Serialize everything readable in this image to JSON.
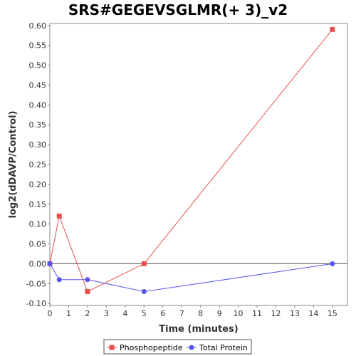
{
  "chart_data": {
    "type": "line",
    "title": "SRS#GEGEVSGLMR(+ 3)_v2",
    "xlabel": "Time (minutes)",
    "ylabel": "log2(dDAVP/Control)",
    "xlim": [
      0,
      15.8
    ],
    "ylim": [
      -0.105,
      0.605
    ],
    "x_ticks": [
      0,
      1,
      2,
      3,
      4,
      5,
      6,
      7,
      8,
      9,
      10,
      11,
      12,
      13,
      14,
      15
    ],
    "y_ticks": [
      -0.1,
      -0.05,
      0.0,
      0.05,
      0.1,
      0.15,
      0.2,
      0.25,
      0.3,
      0.35,
      0.4,
      0.45,
      0.5,
      0.55,
      0.6
    ],
    "y_tick_labels": [
      "-0.10",
      "-0.05",
      "0.00",
      "0.05",
      "0.10",
      "0.15",
      "0.20",
      "0.25",
      "0.30",
      "0.35",
      "0.40",
      "0.45",
      "0.50",
      "0.55",
      "0.60"
    ],
    "zero_line": true,
    "grid": false,
    "legend_position": "bottom",
    "series": [
      {
        "name": "Phosphopeptide",
        "color": "#e8504f",
        "marker": "square",
        "x": [
          0,
          0.5,
          2,
          5,
          15
        ],
        "y": [
          0.0,
          0.12,
          -0.07,
          0.0,
          0.59
        ]
      },
      {
        "name": "Total Protein",
        "color": "#5555ee",
        "marker": "circle",
        "x": [
          0,
          0.5,
          2,
          5,
          15
        ],
        "y": [
          0.0,
          -0.04,
          -0.04,
          -0.07,
          0.0
        ]
      }
    ]
  }
}
